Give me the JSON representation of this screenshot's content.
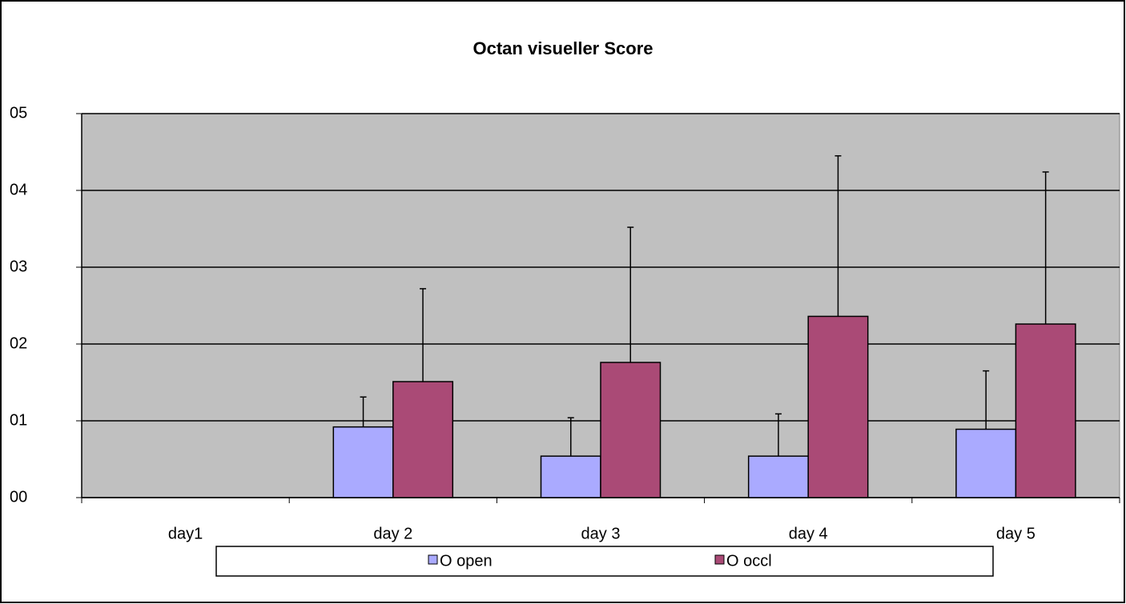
{
  "chart_data": {
    "type": "bar",
    "title": "Octan visueller Score",
    "categories": [
      "day1",
      "day 2",
      "day 3",
      "day 4",
      "day 5"
    ],
    "series": [
      {
        "name": "O open",
        "color": "#aaaaff",
        "values": [
          0,
          0.92,
          0.54,
          0.54,
          0.89
        ],
        "errors": [
          0,
          0.39,
          0.5,
          0.55,
          0.76
        ]
      },
      {
        "name": "O occl",
        "color": "#aa4a76",
        "values": [
          0,
          1.51,
          1.76,
          2.36,
          2.26
        ],
        "errors": [
          0,
          1.21,
          1.76,
          2.09,
          1.98
        ]
      }
    ],
    "ylim": [
      0,
      5
    ],
    "yticks": [
      {
        "value": 0,
        "label": "00"
      },
      {
        "value": 1,
        "label": "01"
      },
      {
        "value": 2,
        "label": "02"
      },
      {
        "value": 3,
        "label": "03"
      },
      {
        "value": 4,
        "label": "04"
      },
      {
        "value": 5,
        "label": "05"
      }
    ],
    "grid": true,
    "legend": "bottom"
  }
}
